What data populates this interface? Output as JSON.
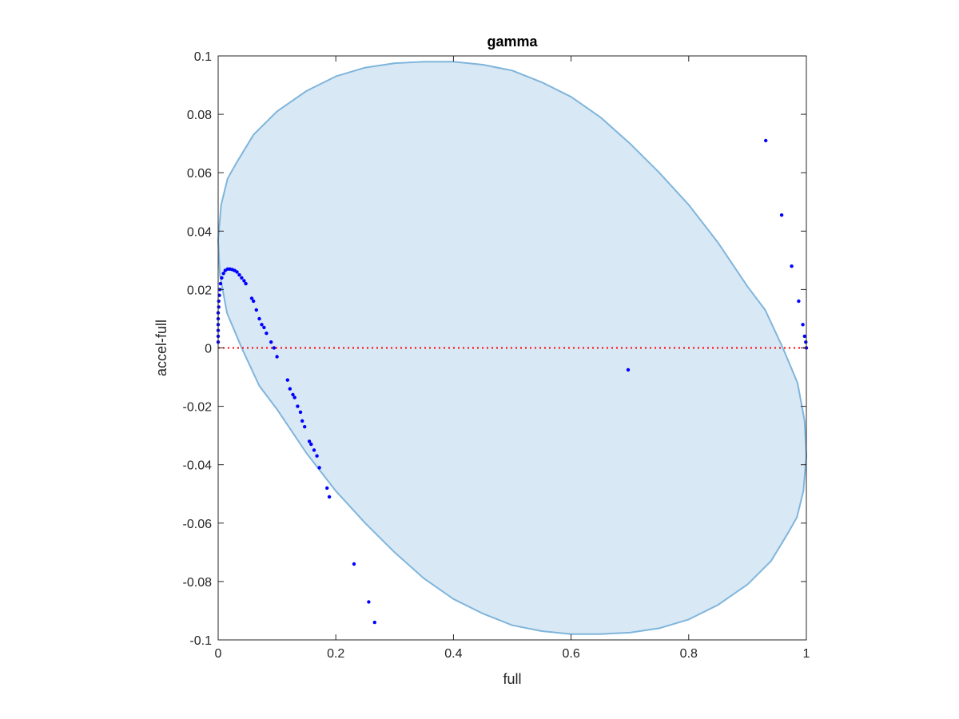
{
  "chart_data": {
    "type": "scatter",
    "title": "gamma",
    "xlabel": "full",
    "ylabel": "accel-full",
    "xlim": [
      0,
      1
    ],
    "ylim": [
      -0.1,
      0.1
    ],
    "xticks": [
      0,
      0.2,
      0.4,
      0.6,
      0.8,
      1
    ],
    "xtick_labels": [
      "0",
      "0.2",
      "0.4",
      "0.6",
      "0.8",
      "1"
    ],
    "yticks": [
      -0.1,
      -0.08,
      -0.06,
      -0.04,
      -0.02,
      0,
      0.02,
      0.04,
      0.06,
      0.08,
      0.1
    ],
    "ytick_labels": [
      "-0.1",
      "-0.08",
      "-0.06",
      "-0.04",
      "-0.02",
      "0",
      "0.02",
      "0.04",
      "0.06",
      "0.08",
      "0.1"
    ],
    "grid": false,
    "box": true,
    "reference_line": {
      "y": 0,
      "style": "dotted",
      "color": "#ff0000"
    },
    "region": {
      "type": "ellipse",
      "fill_color": "#d8e8f4",
      "edge_color": "#7fb5dc",
      "points": [
        [
          0.0,
          0.037
        ],
        [
          0.005,
          0.049
        ],
        [
          0.016,
          0.058
        ],
        [
          0.03,
          0.063
        ],
        [
          0.06,
          0.073
        ],
        [
          0.1,
          0.081
        ],
        [
          0.15,
          0.088
        ],
        [
          0.2,
          0.093
        ],
        [
          0.25,
          0.096
        ],
        [
          0.3,
          0.0975
        ],
        [
          0.35,
          0.098
        ],
        [
          0.4,
          0.098
        ],
        [
          0.45,
          0.097
        ],
        [
          0.5,
          0.095
        ],
        [
          0.55,
          0.091
        ],
        [
          0.6,
          0.086
        ],
        [
          0.65,
          0.079
        ],
        [
          0.7,
          0.07
        ],
        [
          0.75,
          0.06
        ],
        [
          0.8,
          0.049
        ],
        [
          0.85,
          0.036
        ],
        [
          0.9,
          0.021
        ],
        [
          0.93,
          0.013
        ],
        [
          0.96,
          0.0
        ],
        [
          0.985,
          -0.012
        ],
        [
          0.997,
          -0.025
        ],
        [
          1.0,
          -0.037
        ],
        [
          0.995,
          -0.049
        ],
        [
          0.984,
          -0.058
        ],
        [
          0.97,
          -0.063
        ],
        [
          0.94,
          -0.073
        ],
        [
          0.9,
          -0.081
        ],
        [
          0.85,
          -0.088
        ],
        [
          0.8,
          -0.093
        ],
        [
          0.75,
          -0.096
        ],
        [
          0.7,
          -0.0975
        ],
        [
          0.65,
          -0.098
        ],
        [
          0.6,
          -0.098
        ],
        [
          0.55,
          -0.097
        ],
        [
          0.5,
          -0.095
        ],
        [
          0.45,
          -0.091
        ],
        [
          0.4,
          -0.086
        ],
        [
          0.35,
          -0.079
        ],
        [
          0.3,
          -0.07
        ],
        [
          0.25,
          -0.06
        ],
        [
          0.2,
          -0.049
        ],
        [
          0.15,
          -0.036
        ],
        [
          0.1,
          -0.021
        ],
        [
          0.07,
          -0.013
        ],
        [
          0.04,
          0.0
        ],
        [
          0.015,
          0.012
        ],
        [
          0.003,
          0.025
        ]
      ]
    },
    "series": [
      {
        "color": "#0000ff",
        "marker": "dot",
        "points": [
          [
            0.0,
            0.002
          ],
          [
            0.0,
            0.004
          ],
          [
            0.0,
            0.006
          ],
          [
            0.0,
            0.008
          ],
          [
            0.0,
            0.01
          ],
          [
            0.0,
            0.012
          ],
          [
            0.001,
            0.014
          ],
          [
            0.001,
            0.016
          ],
          [
            0.002,
            0.018
          ],
          [
            0.003,
            0.02
          ],
          [
            0.004,
            0.022
          ],
          [
            0.006,
            0.024
          ],
          [
            0.009,
            0.0255
          ],
          [
            0.012,
            0.0265
          ],
          [
            0.016,
            0.027
          ],
          [
            0.02,
            0.027
          ],
          [
            0.024,
            0.0268
          ],
          [
            0.028,
            0.0265
          ],
          [
            0.032,
            0.026
          ],
          [
            0.036,
            0.025
          ],
          [
            0.04,
            0.024
          ],
          [
            0.044,
            0.023
          ],
          [
            0.047,
            0.022
          ],
          [
            0.057,
            0.017
          ],
          [
            0.06,
            0.016
          ],
          [
            0.065,
            0.013
          ],
          [
            0.07,
            0.01
          ],
          [
            0.074,
            0.008
          ],
          [
            0.078,
            0.007
          ],
          [
            0.082,
            0.005
          ],
          [
            0.09,
            0.002
          ],
          [
            0.095,
            0.0
          ],
          [
            0.1,
            -0.003
          ],
          [
            0.118,
            -0.011
          ],
          [
            0.122,
            -0.014
          ],
          [
            0.127,
            -0.016
          ],
          [
            0.13,
            -0.017
          ],
          [
            0.135,
            -0.02
          ],
          [
            0.14,
            -0.022
          ],
          [
            0.143,
            -0.025
          ],
          [
            0.147,
            -0.027
          ],
          [
            0.155,
            -0.032
          ],
          [
            0.158,
            -0.033
          ],
          [
            0.163,
            -0.035
          ],
          [
            0.168,
            -0.037
          ],
          [
            0.172,
            -0.041
          ],
          [
            0.185,
            -0.048
          ],
          [
            0.189,
            -0.051
          ],
          [
            0.231,
            -0.074
          ],
          [
            0.256,
            -0.087
          ],
          [
            0.266,
            -0.094
          ],
          [
            0.697,
            -0.0075
          ],
          [
            0.931,
            0.071
          ],
          [
            0.958,
            0.0455
          ],
          [
            0.975,
            0.028
          ],
          [
            0.987,
            0.016
          ],
          [
            0.994,
            0.008
          ],
          [
            0.997,
            0.004
          ],
          [
            0.999,
            0.002
          ],
          [
            1.0,
            0.0
          ]
        ]
      }
    ]
  }
}
